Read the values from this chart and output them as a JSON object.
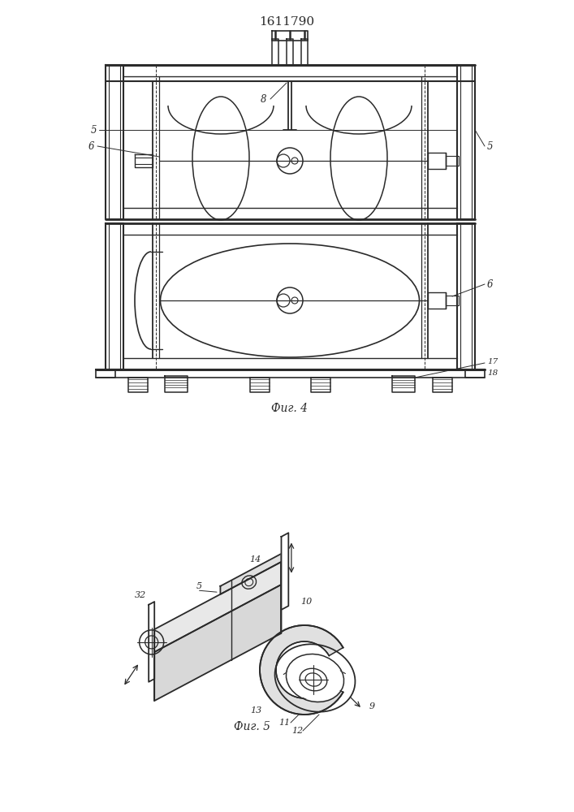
{
  "title": "1611790",
  "fig4_label": "Фиг. 4",
  "fig5_label": "Фиг. 5",
  "line_color": "#2a2a2a",
  "bg_color": "#ffffff"
}
